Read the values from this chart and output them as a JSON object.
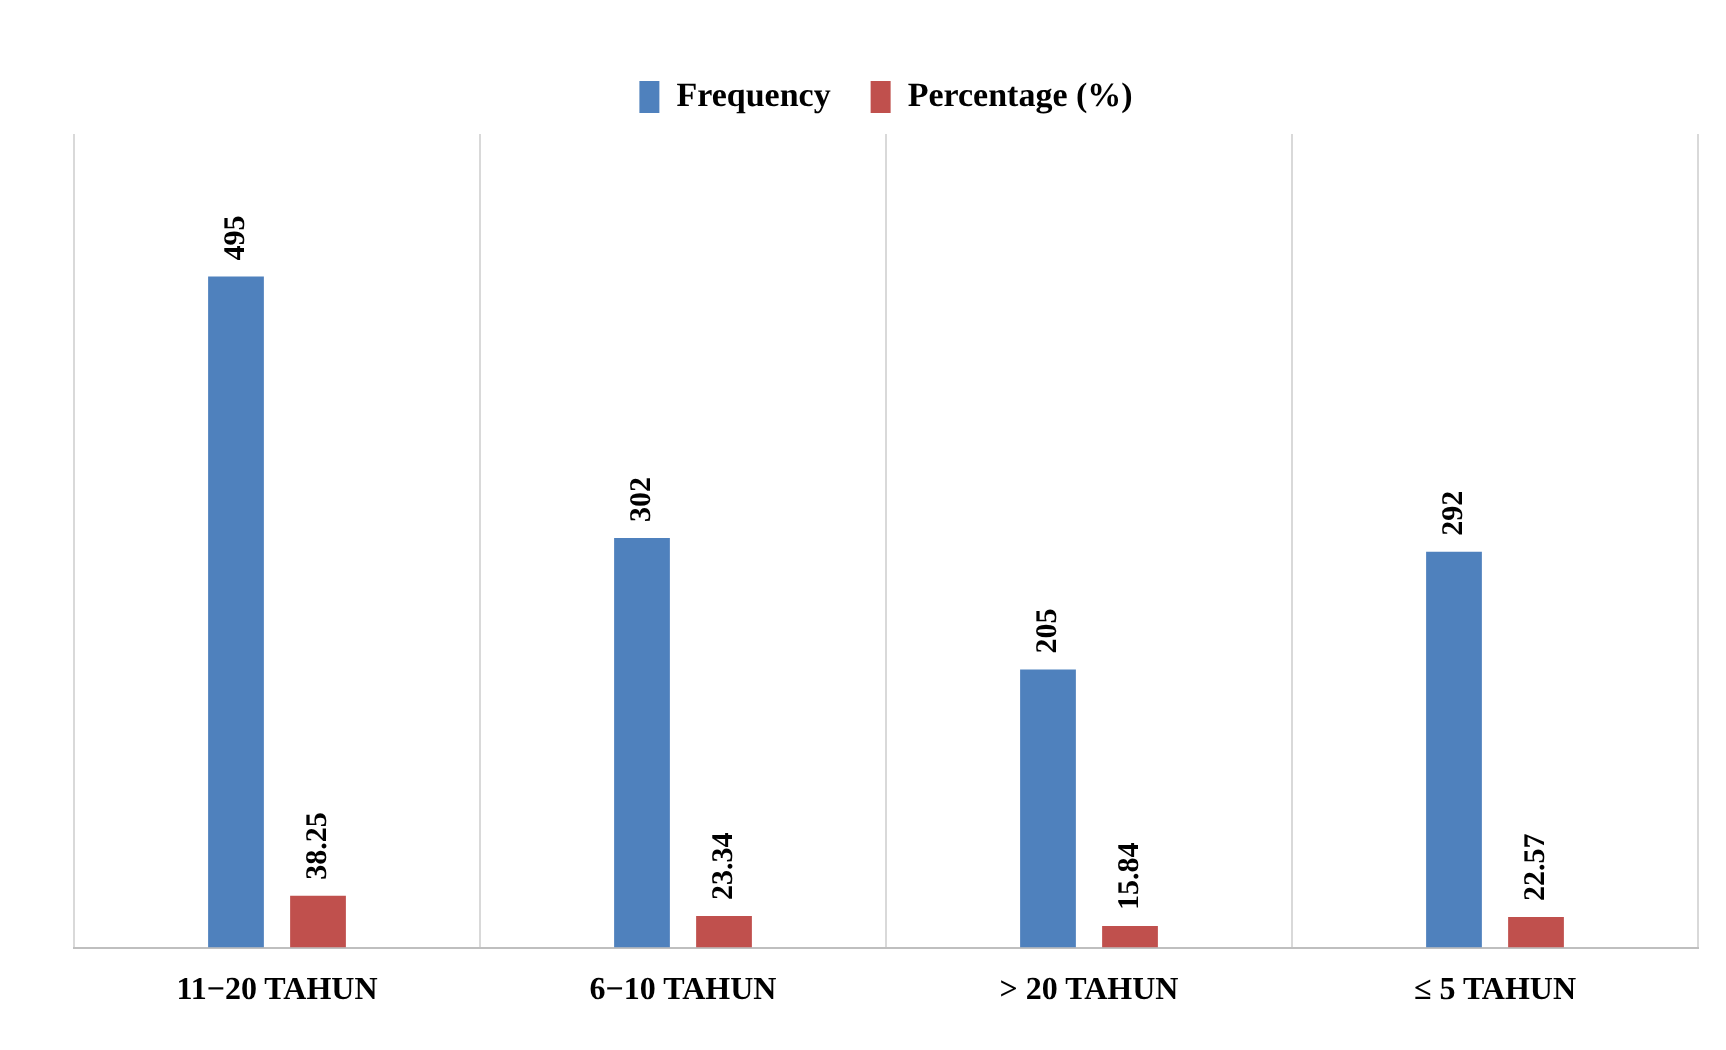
{
  "chart_data": {
    "type": "bar",
    "categories": [
      "11−20 TAHUN",
      "6−10 TAHUN",
      "> 20 TAHUN",
      "≤ 5 TAHUN"
    ],
    "series": [
      {
        "name": "Frequency",
        "color": "#4f81bd",
        "values": [
          495,
          302,
          205,
          292
        ]
      },
      {
        "name": "Percentage (%)",
        "color": "#c0504d",
        "values": [
          38.25,
          23.34,
          15.84,
          22.57
        ]
      }
    ],
    "ylim": [
      0,
      600
    ],
    "tick_labels": "x",
    "data_labels": true,
    "grid": "x",
    "legend": "top"
  }
}
